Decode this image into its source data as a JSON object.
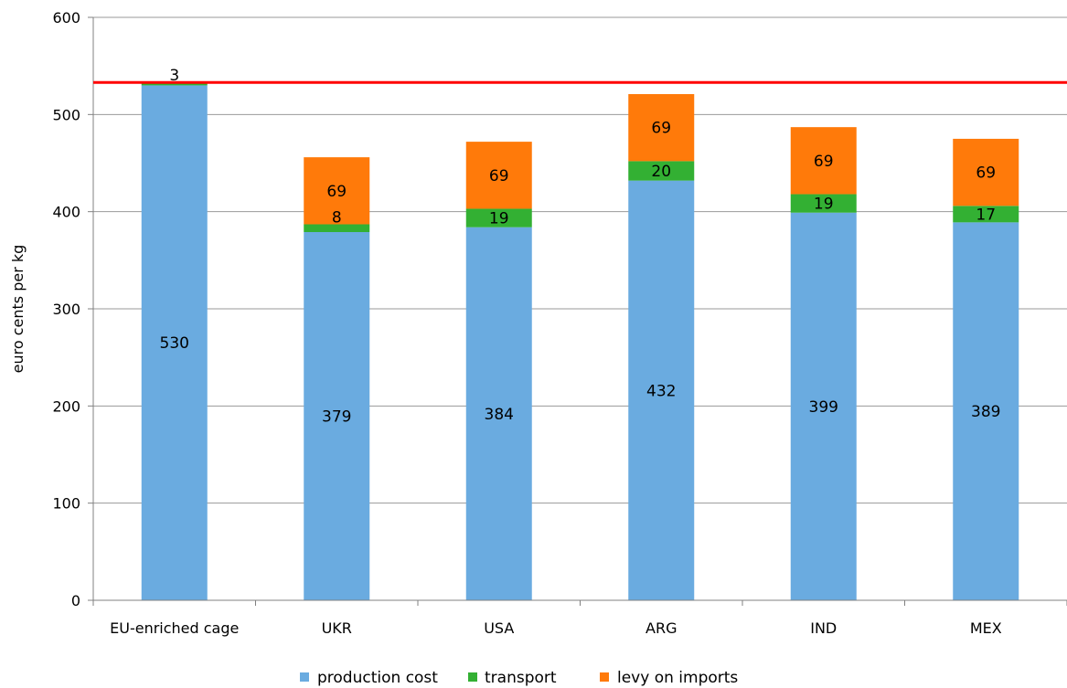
{
  "chart_data": {
    "type": "bar",
    "stacked": true,
    "title": "",
    "xlabel": "",
    "ylabel": "euro cents per kg",
    "ylim": [
      0,
      600
    ],
    "yticks": [
      "0",
      "100",
      "200",
      "300",
      "400",
      "500",
      "600"
    ],
    "grid": true,
    "legend_position": "bottom",
    "categories": [
      "EU-enriched cage",
      "UKR",
      "USA",
      "ARG",
      "IND",
      "MEX"
    ],
    "series": [
      {
        "name": "production cost",
        "color": "#6AABE0",
        "values": [
          530,
          379,
          384,
          432,
          399,
          389
        ]
      },
      {
        "name": "transport",
        "color": "#33B033",
        "values": [
          3,
          8,
          19,
          20,
          19,
          17
        ]
      },
      {
        "name": "levy on imports",
        "color": "#FF7A0A",
        "values": [
          0,
          69,
          69,
          69,
          69,
          69
        ]
      }
    ],
    "reference_line": {
      "value": 533,
      "color": "#FF0000"
    }
  }
}
